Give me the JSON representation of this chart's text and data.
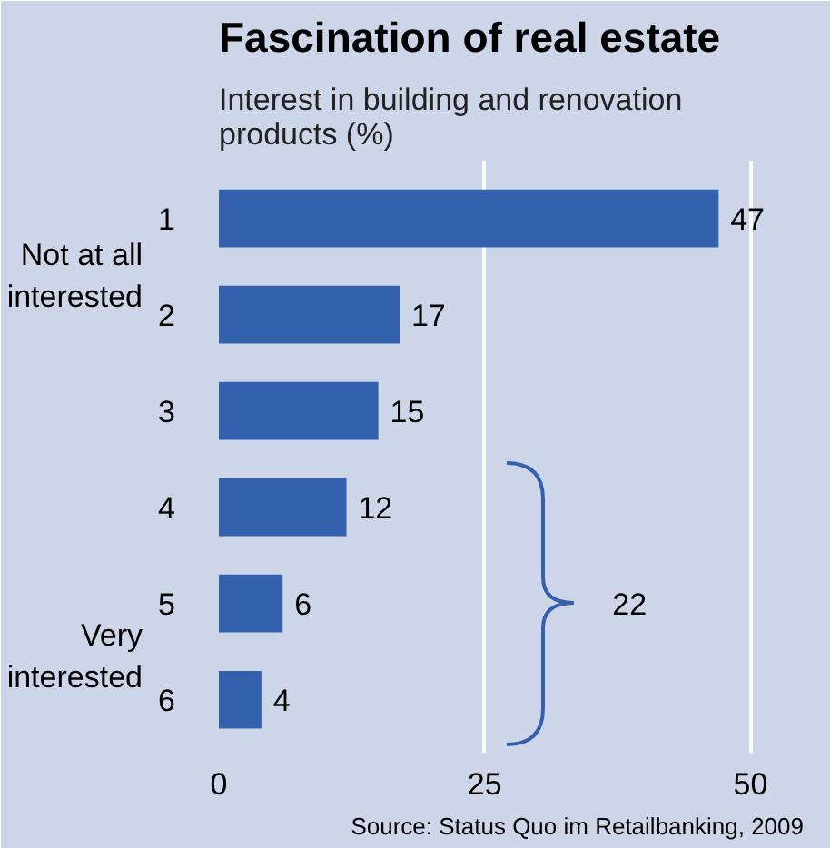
{
  "chart_data": {
    "type": "bar",
    "orientation": "horizontal",
    "title": "Fascination of real estate",
    "subtitle": "Interest in building and renovation\nproducts (%)",
    "categories": [
      "1",
      "2",
      "3",
      "4",
      "5",
      "6"
    ],
    "values": [
      47,
      17,
      15,
      12,
      6,
      4
    ],
    "color": "#3361ad",
    "xlim": [
      0,
      55
    ],
    "xticks": [
      0,
      25,
      50
    ],
    "grid": "x",
    "data_labels": true,
    "annotations": [
      "Not at all\ninterested",
      "Very\ninterested",
      "22",
      "Source: Status Quo im Retailbanking, 2009"
    ]
  }
}
